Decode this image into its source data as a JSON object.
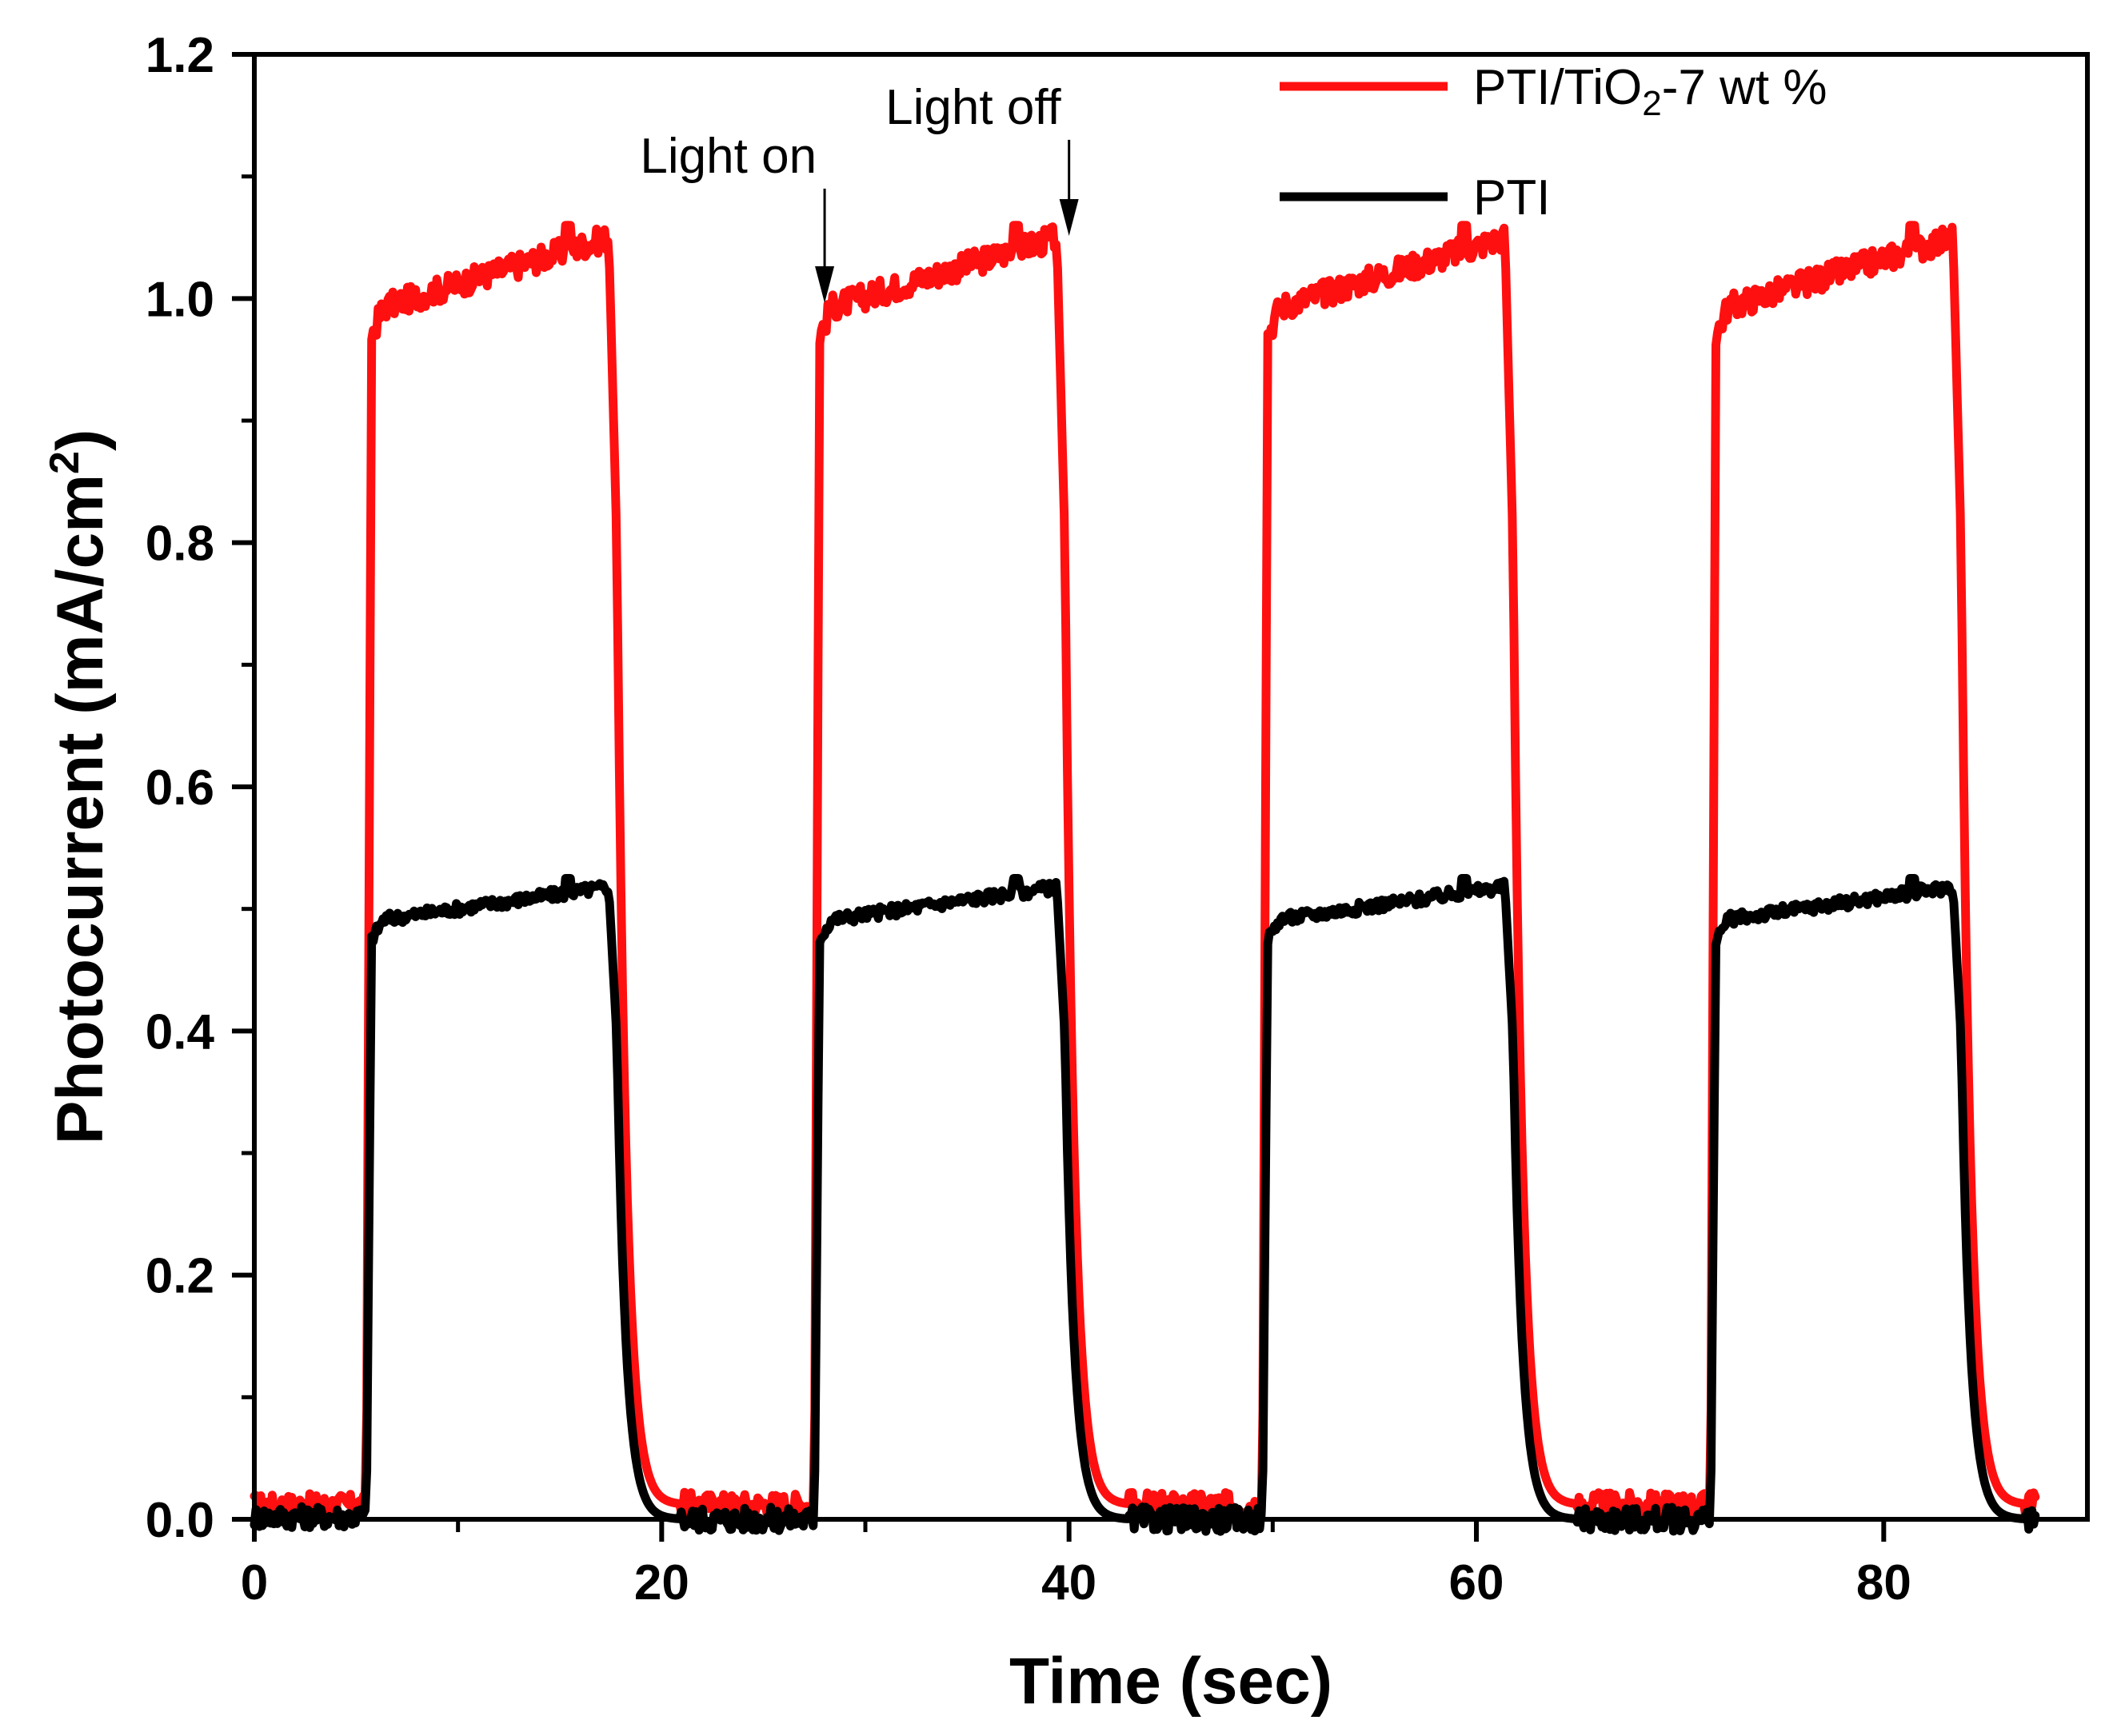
{
  "colors": {
    "series_red": "#ff1010",
    "series_black": "#000000",
    "axis": "#000000"
  },
  "chart_data": {
    "type": "line",
    "title": "",
    "xlabel": "Time (sec)",
    "ylabel_main": "Photocurrent (mA/cm",
    "ylabel_sup": "2",
    "ylabel_close": ")",
    "xlim": [
      0,
      90
    ],
    "ylim": [
      0,
      1.2
    ],
    "x_ticks": [
      "0",
      "20",
      "40",
      "60",
      "80"
    ],
    "x_tick_values": [
      0,
      20,
      40,
      60,
      80
    ],
    "y_ticks": [
      "0.0",
      "0.2",
      "0.4",
      "0.6",
      "0.8",
      "1.0",
      "1.2"
    ],
    "y_tick_values": [
      0,
      0.2,
      0.4,
      0.6,
      0.8,
      1.0,
      1.2
    ],
    "cycles": [
      {
        "on": 5.5,
        "off": 17.4
      },
      {
        "on": 27.5,
        "off": 39.4
      },
      {
        "on": 49.5,
        "off": 61.4
      },
      {
        "on": 71.5,
        "off": 83.4
      }
    ],
    "x_end": 87.5,
    "series": [
      {
        "name": "PTI/TiO2-7 wt %",
        "legend_main": "PTI/TiO",
        "legend_sub": "2",
        "legend_tail": "-7 wt %",
        "color": "#ff1010",
        "baseline": 0.012,
        "on_start": 0.97,
        "plateau_step": 0.99,
        "on_end": 1.05,
        "spike": 1.06,
        "tail": 0.012
      },
      {
        "name": "PTI",
        "legend_main": "PTI",
        "color": "#000000",
        "baseline": 0.002,
        "on_start": 0.475,
        "plateau_step": 0.49,
        "on_end": 0.518,
        "spike": 0.525,
        "tail": 0.0
      }
    ],
    "annotations": [
      {
        "text": "Light on",
        "x": 28.0,
        "y_tip": 0.995,
        "y_tail": 1.09
      },
      {
        "text": "Light off",
        "x": 40.0,
        "y_tip": 1.05,
        "y_tail": 1.13
      }
    ],
    "legend_position": "top-right",
    "grid": false
  }
}
